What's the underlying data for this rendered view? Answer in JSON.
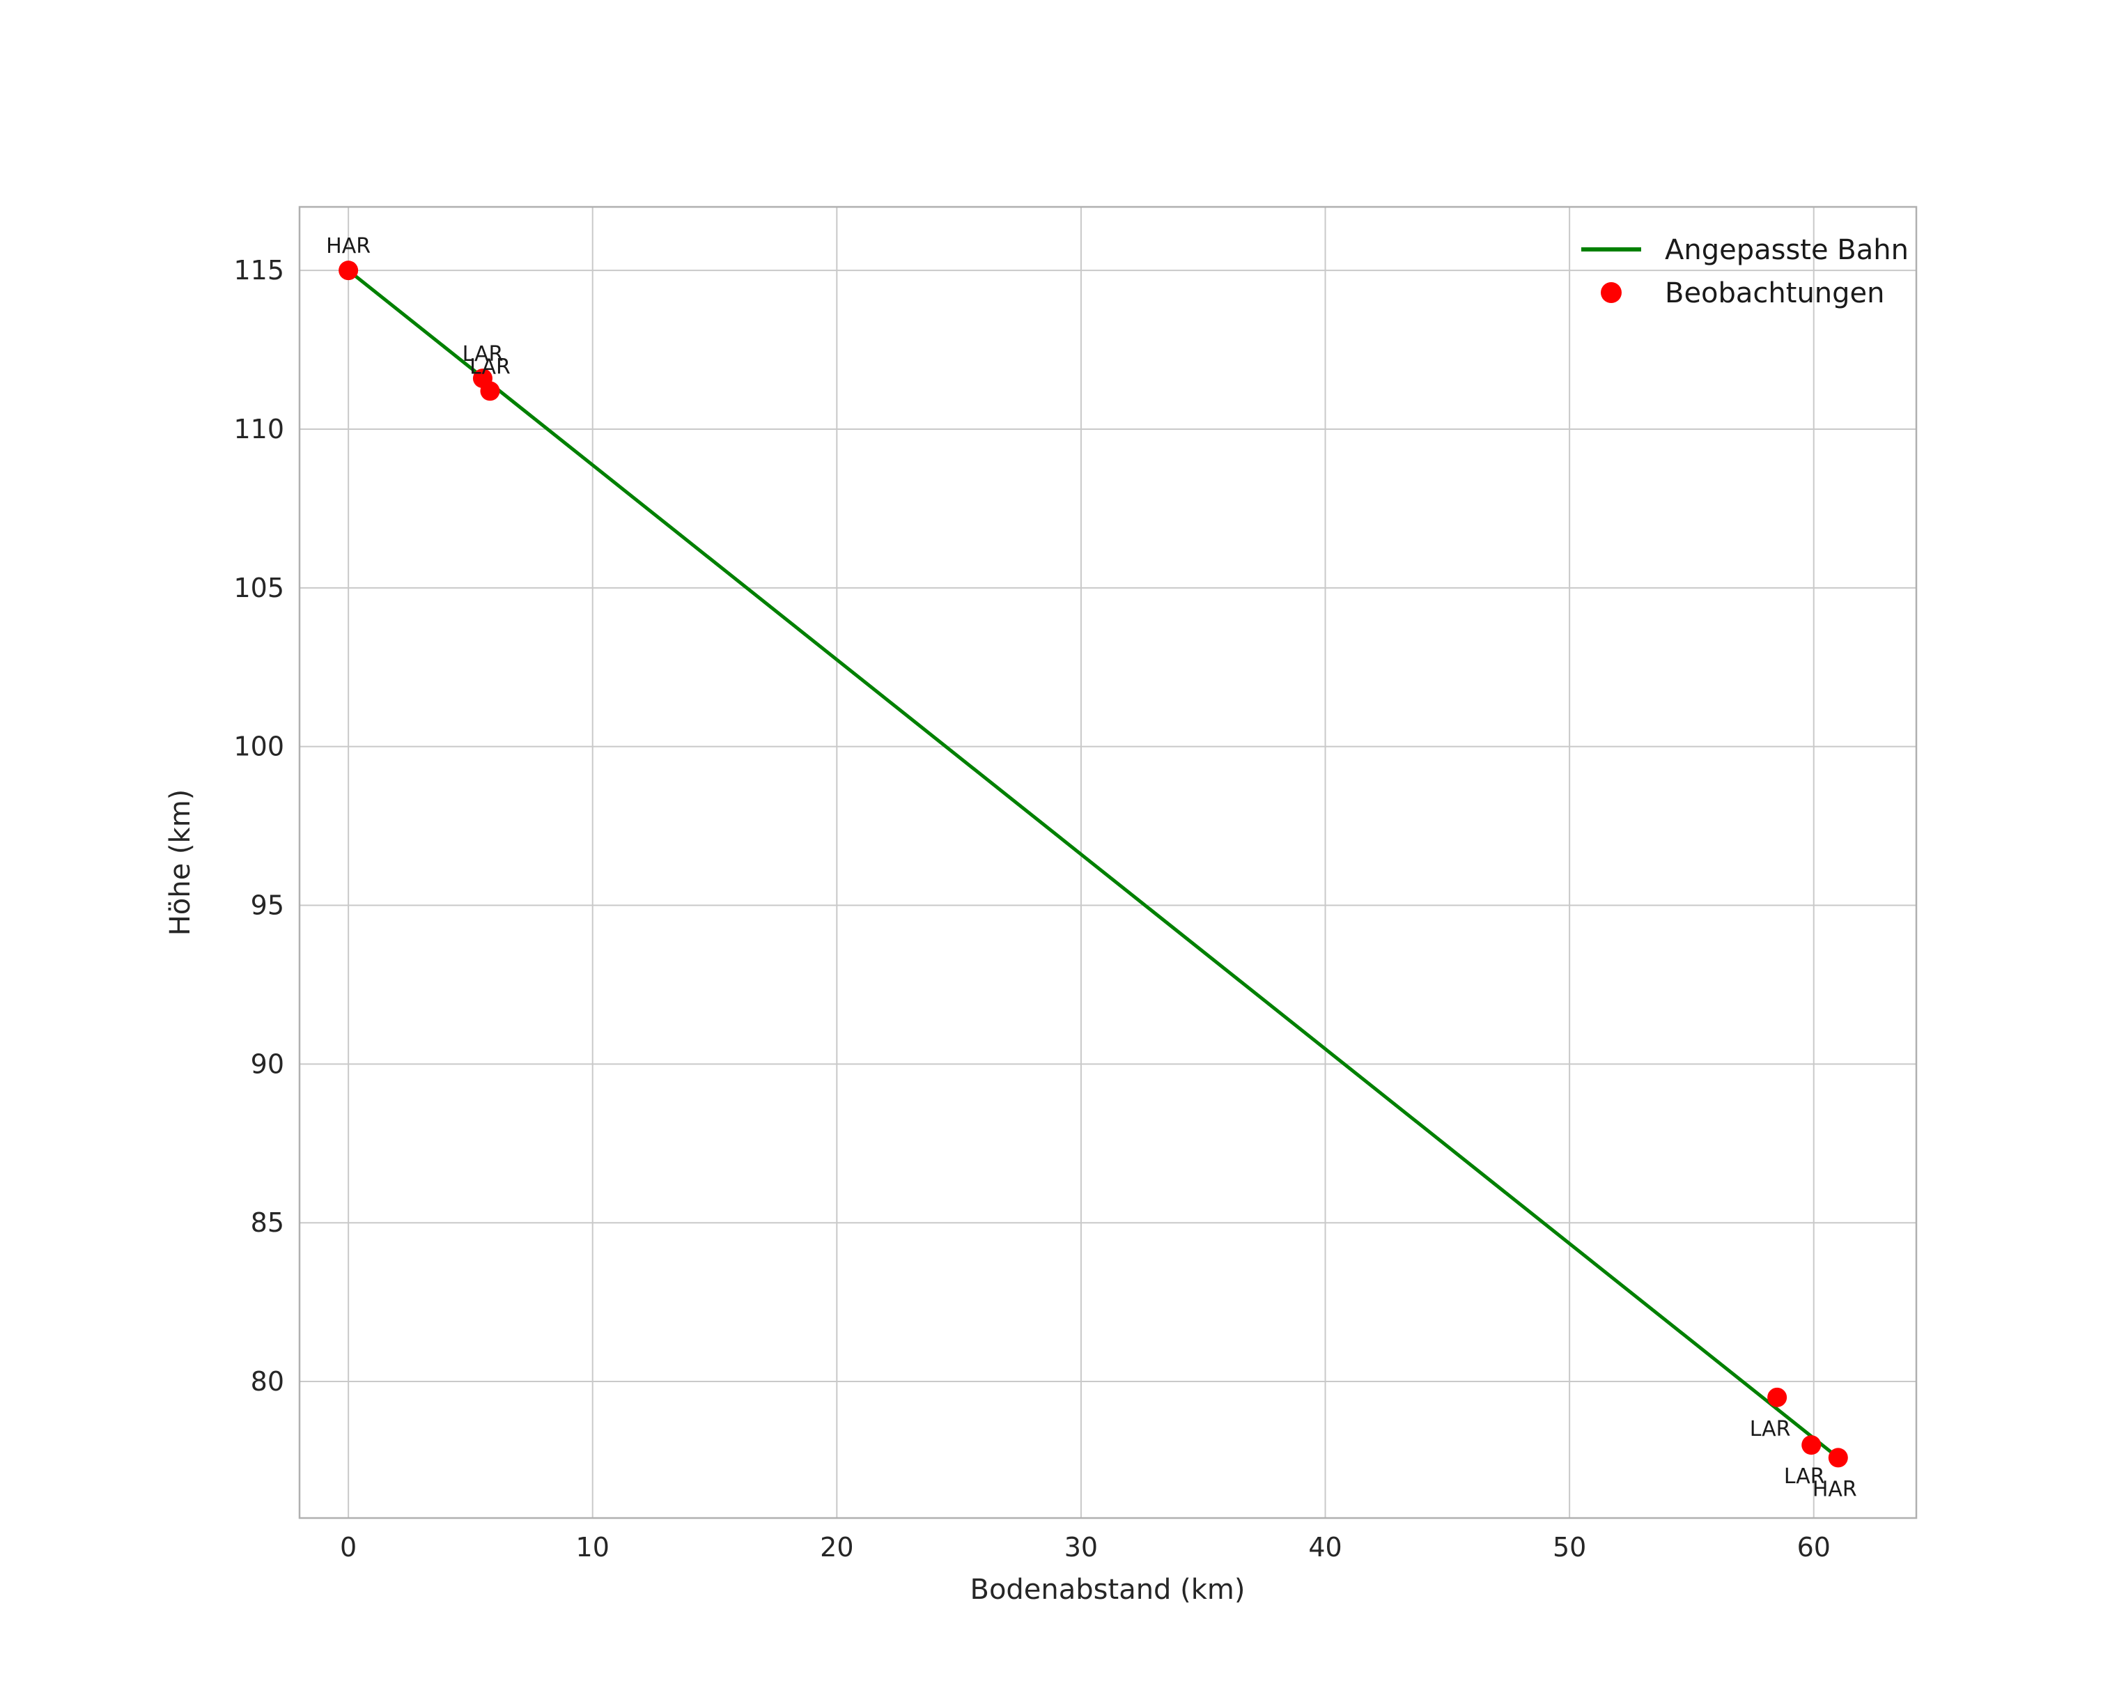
{
  "chart_data": {
    "type": "scatter",
    "title": "",
    "xlabel": "Bodenabstand (km)",
    "ylabel": "Höhe (km)",
    "xlim": [
      -2.0,
      64.2
    ],
    "ylim": [
      75.7,
      117.0
    ],
    "x_ticks": [
      0,
      10,
      20,
      30,
      40,
      50,
      60
    ],
    "y_ticks": [
      80,
      85,
      90,
      95,
      100,
      105,
      110,
      115
    ],
    "grid": true,
    "colors": {
      "line": "#008000",
      "points": "#ff0000",
      "grid": "#c9c9c9",
      "frame": "#b0b0b0",
      "text": "#262626"
    },
    "legend": {
      "position": "top-right",
      "entries": [
        {
          "label": "Angepasste Bahn",
          "marker": "line",
          "color": "#008000"
        },
        {
          "label": "Beobachtungen",
          "marker": "dot",
          "color": "#ff0000"
        }
      ]
    },
    "line_series": {
      "name": "Angepasste Bahn",
      "color": "#008000",
      "points": [
        [
          0.0,
          115.0
        ],
        [
          30.5,
          96.3
        ],
        [
          61.0,
          77.6
        ]
      ]
    },
    "scatter_series": {
      "name": "Beobachtungen",
      "color": "#ff0000",
      "points": [
        {
          "x": 0.0,
          "y": 115.0,
          "label": "HAR",
          "label_side": "above",
          "label_dx": 0
        },
        {
          "x": 5.5,
          "y": 111.6,
          "label": "LAR",
          "label_side": "above",
          "label_dx": 0
        },
        {
          "x": 5.8,
          "y": 111.2,
          "label": "LAR",
          "label_side": "above",
          "label_dx": 0
        },
        {
          "x": 58.5,
          "y": 79.5,
          "label": "LAR",
          "label_side": "below",
          "label_dx": -10
        },
        {
          "x": 59.9,
          "y": 78.0,
          "label": "LAR",
          "label_side": "below",
          "label_dx": -10
        },
        {
          "x": 61.0,
          "y": 77.6,
          "label": "HAR",
          "label_side": "below",
          "label_dx": -5
        }
      ]
    }
  }
}
